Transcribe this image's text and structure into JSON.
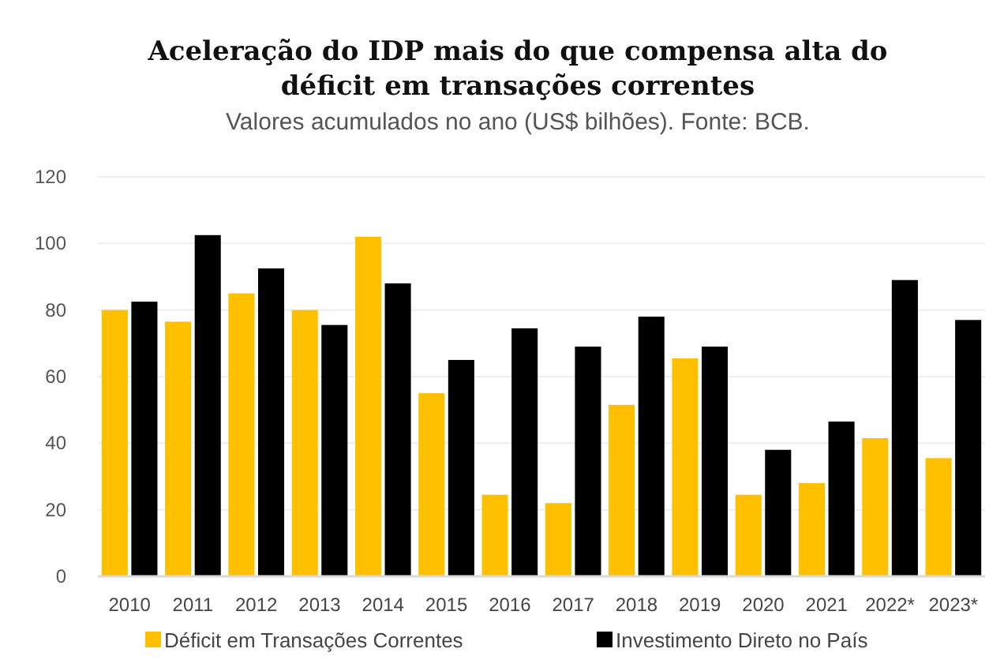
{
  "chart_data": {
    "type": "bar",
    "title": "Aceleração do IDP mais do que compensa alta do déficit em transações correntes",
    "subtitle": "Valores acumulados no ano (US$ bilhões). Fonte: BCB.",
    "categories": [
      "2010",
      "2011",
      "2012",
      "2013",
      "2014",
      "2015",
      "2016",
      "2017",
      "2018",
      "2019",
      "2020",
      "2021",
      "2022*",
      "2023*"
    ],
    "series": [
      {
        "name": "Déficit em Transações Correntes",
        "color": "#ffc000",
        "values": [
          80,
          76.5,
          85,
          80,
          102,
          55,
          24.5,
          22,
          51.5,
          65.5,
          24.5,
          28,
          41.5,
          35.5
        ]
      },
      {
        "name": "Investimento Direto no País",
        "color": "#000000",
        "values": [
          82.5,
          102.5,
          92.5,
          75.5,
          88,
          65,
          74.5,
          69,
          78,
          69,
          38,
          46.5,
          89,
          77
        ]
      }
    ],
    "ylim": [
      0,
      120
    ],
    "yticks": [
      0,
      20,
      40,
      60,
      80,
      100,
      120
    ],
    "grid": "y",
    "legend": "bottom"
  }
}
